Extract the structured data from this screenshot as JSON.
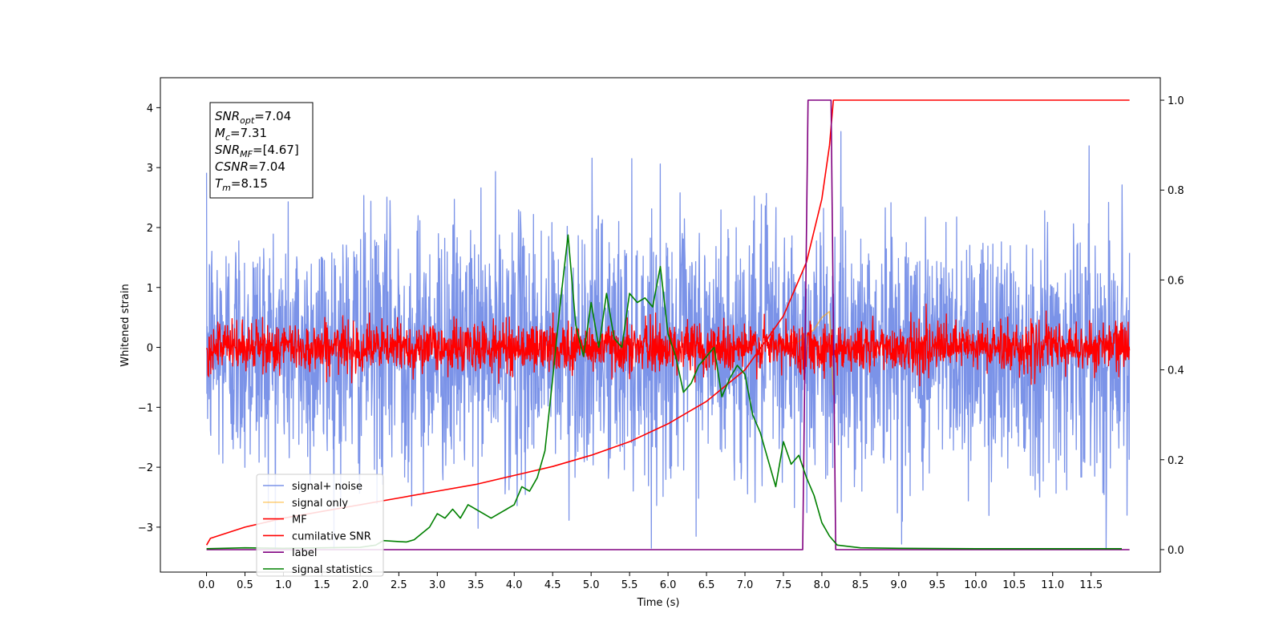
{
  "chart_data": {
    "type": "line",
    "xlabel": "Time (s)",
    "ylabel": "Whitened strain",
    "xlim": [
      -0.6,
      12.4
    ],
    "ylim": [
      -3.75,
      4.5
    ],
    "ylim_right": [
      -0.05,
      1.05
    ],
    "x_ticks": [
      "0.0",
      "0.5",
      "1.0",
      "1.5",
      "2.0",
      "2.5",
      "3.0",
      "3.5",
      "4.0",
      "4.5",
      "5.0",
      "5.5",
      "6.0",
      "6.5",
      "7.0",
      "7.5",
      "8.0",
      "8.5",
      "9.0",
      "9.5",
      "10.0",
      "10.5",
      "11.0",
      "11.5"
    ],
    "y_ticks_left": [
      -3,
      -2,
      -1,
      0,
      1,
      2,
      3,
      4
    ],
    "y_ticks_right": [
      "0.0",
      "0.2",
      "0.4",
      "0.6",
      "0.8",
      "1.0"
    ],
    "stats_box": [
      {
        "sym": "SNR",
        "sub": "opt",
        "val": "=7.04"
      },
      {
        "sym": "M",
        "sub": "c",
        "val": "=7.31"
      },
      {
        "sym": "SNR",
        "sub": "MF",
        "val": "=[4.67]"
      },
      {
        "sym": "CSNR",
        "sub": "",
        "val": "=7.04"
      },
      {
        "sym": "T",
        "sub": "m",
        "val": "=8.15"
      }
    ],
    "legend": [
      {
        "label": "signal+ noise",
        "color": "#7b93e8",
        "opacity": 1
      },
      {
        "label": "signal only",
        "color": "#ffa500",
        "opacity": 0.5
      },
      {
        "label": "MF",
        "color": "#ff0000",
        "opacity": 1
      },
      {
        "label": "cumilative SNR",
        "color": "#ff0000",
        "opacity": 1
      },
      {
        "label": "label",
        "color": "#800080",
        "opacity": 1
      },
      {
        "label": "signal statistics",
        "color": "#008000",
        "opacity": 1
      }
    ],
    "legend_position": "lower-left",
    "series": [
      {
        "name": "signal+ noise",
        "axis": "left",
        "color": "#7b93e8",
        "x_range": [
          0,
          12
        ],
        "envelope_max": 4.17,
        "envelope_min": -3.35,
        "note_style": "dense noise"
      },
      {
        "name": "signal only",
        "axis": "left",
        "color": "#ffa500",
        "points": [
          [
            7.3,
            0.0
          ],
          [
            7.5,
            0.05
          ],
          [
            7.7,
            0.1
          ],
          [
            7.9,
            0.3
          ],
          [
            8.0,
            0.5
          ],
          [
            8.1,
            0.6
          ],
          [
            8.15,
            -0.8
          ]
        ]
      },
      {
        "name": "MF",
        "axis": "left",
        "color": "#ff0000",
        "x_range": [
          0,
          12
        ],
        "center": 0.0,
        "typical_amplitude": 0.55,
        "note_style": "dense noise"
      },
      {
        "name": "cumilative SNR",
        "axis": "right",
        "color": "#ff0000",
        "points": [
          [
            0.0,
            0.01
          ],
          [
            0.05,
            0.025
          ],
          [
            0.5,
            0.05
          ],
          [
            1.0,
            0.07
          ],
          [
            1.5,
            0.085
          ],
          [
            2.0,
            0.1
          ],
          [
            2.5,
            0.115
          ],
          [
            3.0,
            0.13
          ],
          [
            3.5,
            0.145
          ],
          [
            4.0,
            0.165
          ],
          [
            4.5,
            0.185
          ],
          [
            5.0,
            0.21
          ],
          [
            5.5,
            0.24
          ],
          [
            6.0,
            0.28
          ],
          [
            6.5,
            0.33
          ],
          [
            7.0,
            0.4
          ],
          [
            7.5,
            0.52
          ],
          [
            7.8,
            0.64
          ],
          [
            8.0,
            0.78
          ],
          [
            8.1,
            0.9
          ],
          [
            8.15,
            1.0
          ],
          [
            12.0,
            1.0
          ]
        ]
      },
      {
        "name": "label",
        "axis": "right",
        "color": "#800080",
        "points": [
          [
            0.0,
            0.0
          ],
          [
            7.75,
            0.0
          ],
          [
            7.82,
            1.0
          ],
          [
            8.12,
            1.0
          ],
          [
            8.18,
            0.0
          ],
          [
            12.0,
            0.0
          ]
        ]
      },
      {
        "name": "signal statistics",
        "axis": "right",
        "color": "#008000",
        "points": [
          [
            0.0,
            0.002
          ],
          [
            0.5,
            0.004
          ],
          [
            1.0,
            0.003
          ],
          [
            1.5,
            0.004
          ],
          [
            2.0,
            0.005
          ],
          [
            2.2,
            0.01
          ],
          [
            2.3,
            0.02
          ],
          [
            2.5,
            0.018
          ],
          [
            2.6,
            0.017
          ],
          [
            2.7,
            0.022
          ],
          [
            2.9,
            0.05
          ],
          [
            3.0,
            0.08
          ],
          [
            3.1,
            0.07
          ],
          [
            3.2,
            0.09
          ],
          [
            3.3,
            0.07
          ],
          [
            3.4,
            0.1
          ],
          [
            3.5,
            0.09
          ],
          [
            3.6,
            0.08
          ],
          [
            3.7,
            0.07
          ],
          [
            3.8,
            0.08
          ],
          [
            3.9,
            0.09
          ],
          [
            4.0,
            0.1
          ],
          [
            4.1,
            0.14
          ],
          [
            4.2,
            0.13
          ],
          [
            4.3,
            0.16
          ],
          [
            4.4,
            0.22
          ],
          [
            4.5,
            0.38
          ],
          [
            4.6,
            0.55
          ],
          [
            4.7,
            0.7
          ],
          [
            4.8,
            0.5
          ],
          [
            4.9,
            0.43
          ],
          [
            5.0,
            0.55
          ],
          [
            5.1,
            0.45
          ],
          [
            5.2,
            0.57
          ],
          [
            5.3,
            0.47
          ],
          [
            5.4,
            0.45
          ],
          [
            5.5,
            0.57
          ],
          [
            5.6,
            0.55
          ],
          [
            5.7,
            0.56
          ],
          [
            5.8,
            0.54
          ],
          [
            5.9,
            0.63
          ],
          [
            6.0,
            0.48
          ],
          [
            6.1,
            0.43
          ],
          [
            6.2,
            0.35
          ],
          [
            6.3,
            0.37
          ],
          [
            6.4,
            0.41
          ],
          [
            6.5,
            0.43
          ],
          [
            6.6,
            0.45
          ],
          [
            6.7,
            0.34
          ],
          [
            6.8,
            0.38
          ],
          [
            6.9,
            0.41
          ],
          [
            7.0,
            0.39
          ],
          [
            7.1,
            0.3
          ],
          [
            7.2,
            0.26
          ],
          [
            7.3,
            0.2
          ],
          [
            7.4,
            0.14
          ],
          [
            7.5,
            0.24
          ],
          [
            7.6,
            0.19
          ],
          [
            7.7,
            0.21
          ],
          [
            7.8,
            0.16
          ],
          [
            7.9,
            0.12
          ],
          [
            8.0,
            0.06
          ],
          [
            8.1,
            0.03
          ],
          [
            8.2,
            0.01
          ],
          [
            8.5,
            0.004
          ],
          [
            9.0,
            0.003
          ],
          [
            10.0,
            0.002
          ],
          [
            11.0,
            0.002
          ],
          [
            11.9,
            0.002
          ]
        ]
      }
    ]
  }
}
